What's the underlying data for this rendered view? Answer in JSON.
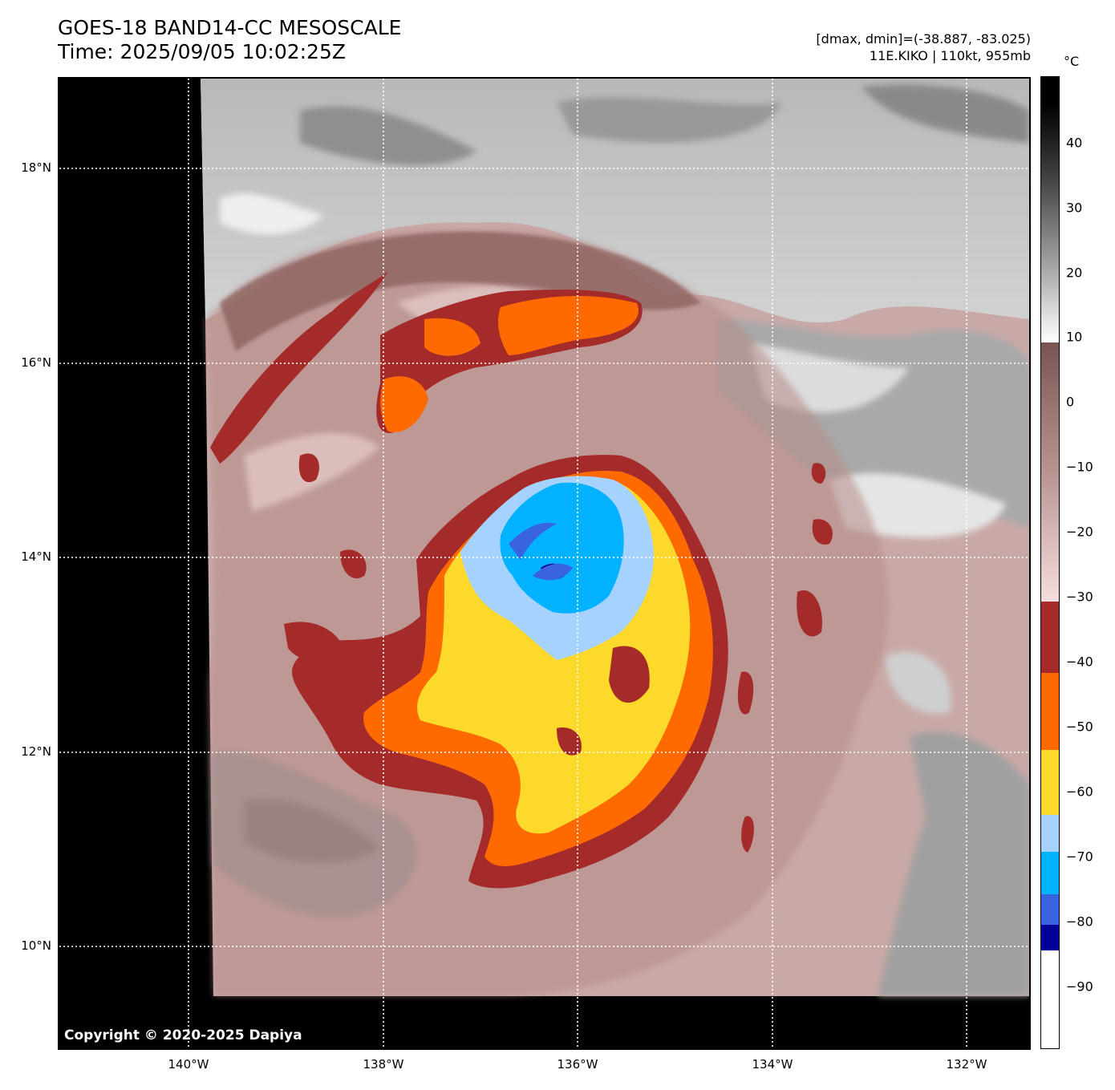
{
  "title": {
    "line1": "GOES-18 BAND14-CC MESOSCALE",
    "line2": "Time: 2025/09/05 10:02:25Z"
  },
  "info": {
    "line1": "[dmax, dmin]=(-38.887, -83.025)",
    "line2": "11E.KIKO | 110kt, 955mb"
  },
  "map": {
    "lat_labels": [
      "18°N",
      "16°N",
      "14°N",
      "12°N",
      "10°N"
    ],
    "lon_labels": [
      "140°W",
      "138°W",
      "136°W",
      "134°W",
      "132°W"
    ],
    "copyright": "Copyright © 2020-2025 Dapiya"
  },
  "colorbar": {
    "unit": "°C",
    "tick_labels": [
      "40",
      "30",
      "20",
      "10",
      "0",
      "−10",
      "−20",
      "−30",
      "−40",
      "−50",
      "−60",
      "−70",
      "−80",
      "−90"
    ],
    "colors": {
      "-40": "#a52a2a",
      "-50": "#ff6a00",
      "-60": "#fcd92a",
      "-65": "#a6d2ff",
      "-70": "#00b2ff",
      "-80": "#3a63e0",
      "-85": "#000099",
      "-90": "#ffffff"
    }
  }
}
